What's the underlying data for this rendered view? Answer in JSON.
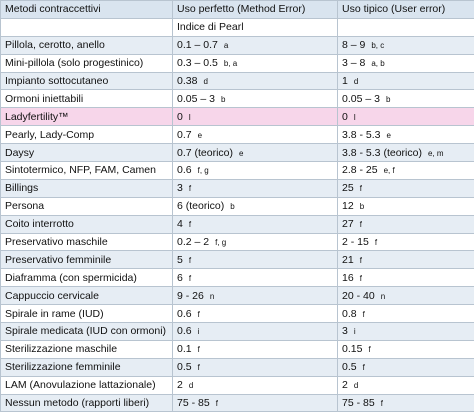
{
  "table": {
    "header": [
      "Metodi contraccettivi",
      "Uso perfetto (Method Error)",
      "Uso tipico (User error)"
    ],
    "subheader": "Indice di Pearl",
    "rows": [
      {
        "method": "Pillola, cerotto, anello",
        "perfect": {
          "value": "0.1 – 0.7",
          "note": "a"
        },
        "typical": {
          "value": "8 – 9",
          "note": "b, c"
        }
      },
      {
        "method": "Mini-pillola (solo progestinico)",
        "perfect": {
          "value": "0.3 – 0.5",
          "note": "b, a"
        },
        "typical": {
          "value": "3 – 8",
          "note": "a, b"
        }
      },
      {
        "method": "Impianto sottocutaneo",
        "perfect": {
          "value": "0.38",
          "note": "d"
        },
        "typical": {
          "value": "1",
          "note": "d"
        }
      },
      {
        "method": "Ormoni iniettabili",
        "perfect": {
          "value": "0.05 – 3",
          "note": "b"
        },
        "typical": {
          "value": "0.05 – 3",
          "note": "b"
        }
      },
      {
        "method": "Ladyfertility™",
        "perfect": {
          "value": "0",
          "note": "l"
        },
        "typical": {
          "value": "0",
          "note": "l"
        }
      },
      {
        "method": "Pearly, Lady-Comp",
        "perfect": {
          "value": "0.7",
          "note": "e"
        },
        "typical": {
          "value": "3.8 - 5.3",
          "note": "e"
        }
      },
      {
        "method": "Daysy",
        "perfect": {
          "value": "0.7 (teorico)",
          "note": "e"
        },
        "typical": {
          "value": "3.8 - 5.3 (teorico)",
          "note": "e, m"
        }
      },
      {
        "method": "Sintotermico, NFP, FAM, Camen",
        "perfect": {
          "value": "0.6",
          "note": "f, g"
        },
        "typical": {
          "value": "2.8 - 25",
          "note": "e, f"
        }
      },
      {
        "method": "Billings",
        "perfect": {
          "value": "3",
          "note": "f"
        },
        "typical": {
          "value": "25",
          "note": "f"
        }
      },
      {
        "method": "Persona",
        "perfect": {
          "value": "6 (teorico)",
          "note": "b"
        },
        "typical": {
          "value": "12",
          "note": "b"
        }
      },
      {
        "method": "Coito interrotto",
        "perfect": {
          "value": "4",
          "note": "f"
        },
        "typical": {
          "value": "27",
          "note": "f"
        }
      },
      {
        "method": "Preservativo maschile",
        "perfect": {
          "value": "0.2 – 2",
          "note": "f, g"
        },
        "typical": {
          "value": "2 - 15",
          "note": "f"
        }
      },
      {
        "method": "Preservativo femminile",
        "perfect": {
          "value": "5",
          "note": "f"
        },
        "typical": {
          "value": "21",
          "note": "f"
        }
      },
      {
        "method": "Diaframma (con spermicida)",
        "perfect": {
          "value": "6",
          "note": "f"
        },
        "typical": {
          "value": "16",
          "note": "f"
        }
      },
      {
        "method": "Cappuccio cervicale",
        "perfect": {
          "value": "9 - 26",
          "note": "n"
        },
        "typical": {
          "value": "20 - 40",
          "note": "n"
        }
      },
      {
        "method": "Spirale in rame (IUD)",
        "perfect": {
          "value": "0.6",
          "note": "f"
        },
        "typical": {
          "value": "0.8",
          "note": "f"
        }
      },
      {
        "method": "Spirale medicata (IUD con ormoni)",
        "perfect": {
          "value": "0.6",
          "note": "i"
        },
        "typical": {
          "value": "3",
          "note": "i"
        }
      },
      {
        "method": "Sterilizzazione maschile",
        "perfect": {
          "value": "0.1",
          "note": "f"
        },
        "typical": {
          "value": "0.15",
          "note": "f"
        }
      },
      {
        "method": "Sterilizzazione femminile",
        "perfect": {
          "value": "0.5",
          "note": "f"
        },
        "typical": {
          "value": "0.5",
          "note": "f"
        }
      },
      {
        "method": "LAM (Anovulazione lattazionale)",
        "perfect": {
          "value": "2",
          "note": "d"
        },
        "typical": {
          "value": "2",
          "note": "d"
        }
      },
      {
        "method": "Nessun metodo (rapporti liberi)",
        "perfect": {
          "value": "75 - 85",
          "note": "f"
        },
        "typical": {
          "value": "75 - 85",
          "note": "f"
        }
      }
    ]
  }
}
